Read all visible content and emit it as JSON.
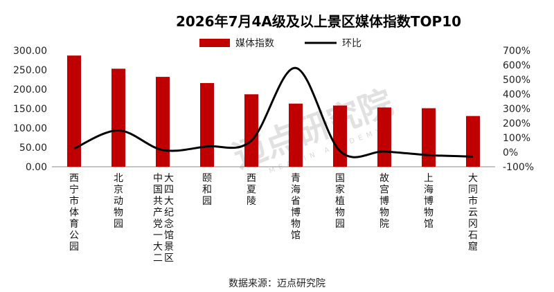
{
  "chart_data": {
    "type": "bar",
    "title": "2026年7月4A级及以上景区媒体指数TOP10",
    "categories": [
      "西宁市体育公园",
      "北京动物园",
      "中国共产党一大二大四大纪念馆景区",
      "颐和园",
      "西夏陵",
      "青海省博物馆",
      "国家植物园",
      "故宫博物院",
      "上海博物馆",
      "大同市云冈石窟"
    ],
    "series": [
      {
        "name": "媒体指数",
        "type": "bar",
        "axis": "left",
        "color": "#c00000",
        "values": [
          287,
          253,
          232,
          216,
          187,
          163,
          158,
          153,
          151,
          131
        ]
      },
      {
        "name": "环比",
        "type": "line",
        "axis": "right",
        "color": "#000000",
        "values": [
          25,
          150,
          15,
          40,
          80,
          580,
          8,
          5,
          -20,
          -30
        ]
      }
    ],
    "yleft": {
      "ticks": [
        "0.00",
        "50.00",
        "100.00",
        "150.00",
        "200.00",
        "250.00",
        "300.00"
      ],
      "ylim": [
        0,
        300
      ]
    },
    "yright": {
      "ticks": [
        "-100%",
        "0%",
        "100%",
        "200%",
        "300%",
        "400%",
        "500%",
        "600%",
        "700%"
      ],
      "ylim": [
        -100,
        700
      ]
    },
    "legend_position": "top-center",
    "grid": false
  },
  "source_text": "数据来源：迈点研究院",
  "watermark": {
    "main": "迈点研究院",
    "sub": "MEADIN ACADEMY"
  }
}
